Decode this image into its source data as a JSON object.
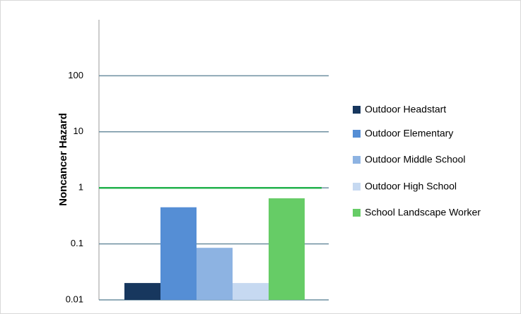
{
  "chart_data": {
    "type": "bar",
    "y_label": "Noncancer Hazard",
    "categories": [
      null
    ],
    "series": [
      {
        "name": "Outdoor Headstart",
        "color": "#17375e",
        "values": [
          0.02
        ]
      },
      {
        "name": "Outdoor Elementary",
        "color": "#558ed5",
        "values": [
          0.45
        ]
      },
      {
        "name": "Outdoor Middle School",
        "color": "#8db3e2",
        "values": [
          0.085
        ]
      },
      {
        "name": "Outdoor High School",
        "color": "#c6d9f1",
        "values": [
          0.02
        ]
      },
      {
        "name": "School Landscape Worker",
        "color": "#66cc66",
        "values": [
          0.65
        ]
      }
    ],
    "reference_line": {
      "value": 1,
      "color": "#22b14c"
    },
    "ylim": [
      0.01,
      1000
    ],
    "yticks": [
      0.01,
      0.1,
      1,
      10,
      100
    ],
    "log_y": true,
    "grid": true,
    "legend": "right"
  }
}
